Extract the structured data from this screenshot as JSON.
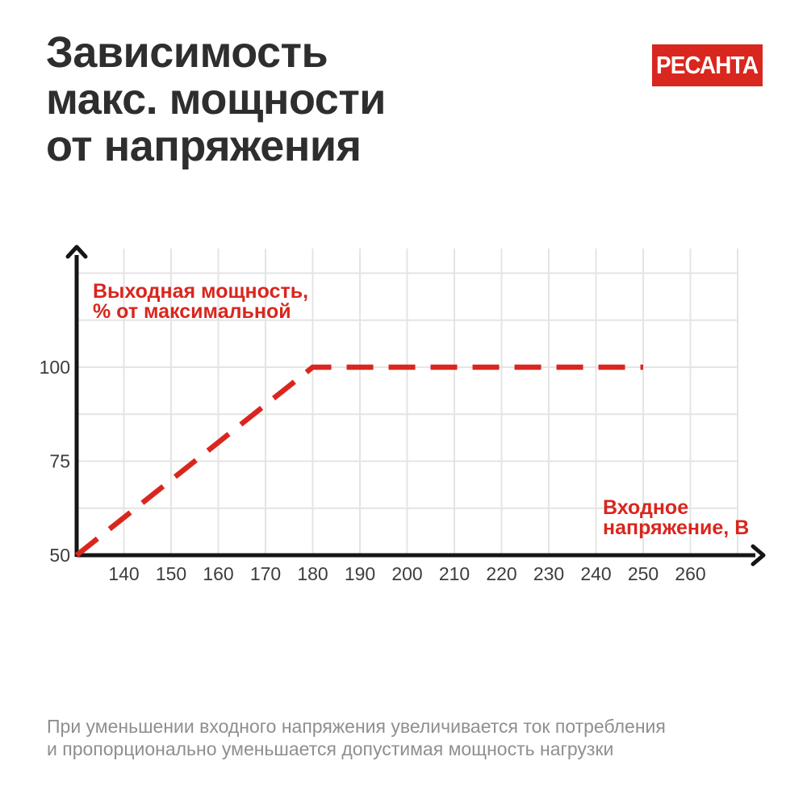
{
  "header": {
    "title": "Зависимость\nмакс. мощности\nот напряжения",
    "logo_text": "РЕСАНТА"
  },
  "colors": {
    "accent_red": "#D9261E",
    "title_text": "#2E2E2E",
    "tick_text": "#3D3D3D",
    "footnote_text": "#8F8F8F",
    "grid_line": "#E4E4E4",
    "axis_line": "#151515",
    "logo_bg": "#D9261E",
    "logo_text_color": "#FFFFFF",
    "background": "#FFFFFF"
  },
  "chart_data": {
    "type": "line",
    "title": "Зависимость макс. мощности от напряжения",
    "x_axis_label_lines": [
      "Входное",
      "напряжение, В"
    ],
    "y_axis_label_lines": [
      "Выходная мощность,",
      "% от максимальной"
    ],
    "x_ticks": [
      140,
      150,
      160,
      170,
      180,
      190,
      200,
      210,
      220,
      230,
      240,
      250,
      260
    ],
    "y_ticks": [
      100,
      75,
      50
    ],
    "x_gridlines": [
      140,
      150,
      160,
      170,
      180,
      190,
      200,
      210,
      220,
      230,
      240,
      250,
      260,
      270
    ],
    "y_gridlines": [
      62.5,
      75,
      87.5,
      100,
      112.5,
      125
    ],
    "xlim": [
      130,
      272
    ],
    "ylim": [
      50,
      132
    ],
    "grid": true,
    "line_style": "dashed",
    "legend": "none",
    "series": [
      {
        "name": "Выходная мощность, % от максимальной",
        "points": [
          [
            130,
            50
          ],
          [
            180,
            100
          ],
          [
            250,
            100
          ]
        ]
      }
    ]
  },
  "footnote": {
    "text": "При уменьшении входного напряжения увеличивается ток потребления\nи пропорционально уменьшается допустимая мощность нагрузки"
  }
}
